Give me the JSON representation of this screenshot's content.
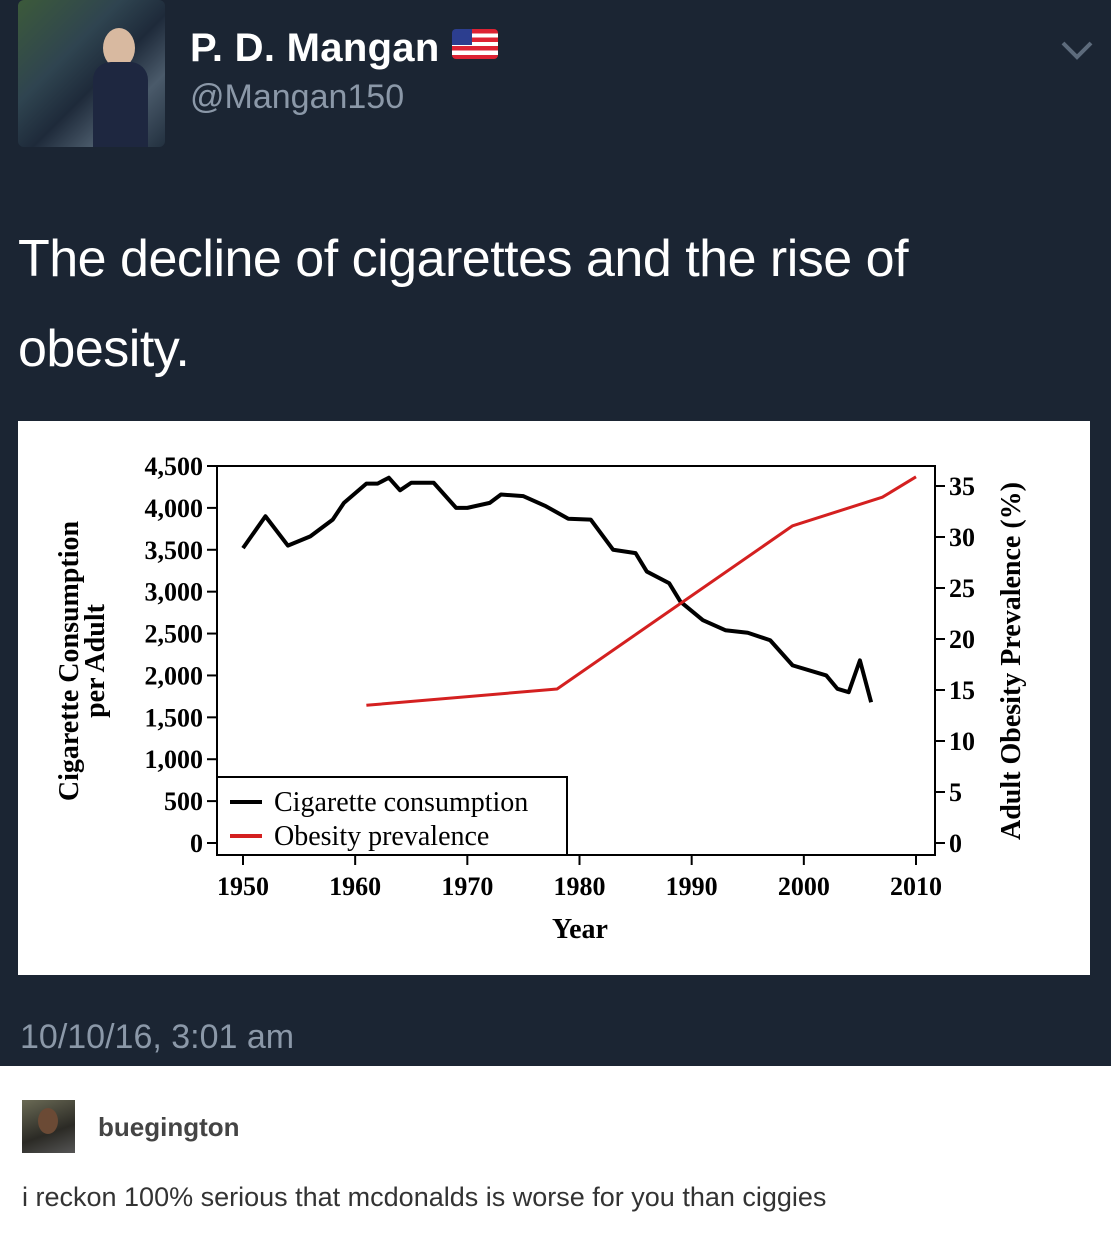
{
  "tweet": {
    "display_name": "P. D. Mangan",
    "flag_icon": "us-flag-icon",
    "handle": "@Mangan150",
    "text": "The decline of cigarettes and the rise of obesity.",
    "timestamp": "10/10/16, 3:01 am",
    "background_color": "#1b2533"
  },
  "reblog": {
    "username": "buegington",
    "comment": "i reckon 100% serious that mcdonalds is worse for you than ciggies"
  },
  "chart_data": {
    "type": "line",
    "xlabel": "Year",
    "ylabel": "Cigarette Consumption per Adult",
    "ylabel_right": "Adult Obesity Prevalence (%)",
    "xlim": [
      1950,
      2010
    ],
    "ylim": [
      0,
      4500
    ],
    "ylim_right": [
      0,
      35
    ],
    "x_ticks": [
      "1950",
      "1960",
      "1970",
      "1980",
      "1990",
      "2000",
      "2010"
    ],
    "y_ticks": [
      "0",
      "500",
      "1,000",
      "1,500",
      "2,000",
      "2,500",
      "3,000",
      "3,500",
      "4,000",
      "4,500"
    ],
    "y_ticks_right": [
      "0",
      "5",
      "10",
      "15",
      "20",
      "25",
      "30",
      "35"
    ],
    "legend_position": "bottom-left",
    "grid": false,
    "series": [
      {
        "name": "Cigarette consumption",
        "color": "#000000",
        "axis": "left",
        "x": [
          1950,
          1952,
          1954,
          1956,
          1958,
          1959,
          1961,
          1962,
          1963,
          1964,
          1965,
          1967,
          1969,
          1970,
          1972,
          1973,
          1975,
          1977,
          1979,
          1981,
          1983,
          1985,
          1986,
          1988,
          1989,
          1991,
          1993,
          1995,
          1997,
          1999,
          2002,
          2003,
          2004,
          2005,
          2006
        ],
        "y": [
          3520,
          3900,
          3550,
          3660,
          3860,
          4060,
          4290,
          4290,
          4360,
          4210,
          4300,
          4300,
          4000,
          4000,
          4060,
          4160,
          4140,
          4020,
          3870,
          3860,
          3500,
          3460,
          3240,
          3100,
          2880,
          2660,
          2540,
          2510,
          2420,
          2120,
          2000,
          1840,
          1800,
          2180,
          1680
        ]
      },
      {
        "name": "Obesity prevalence",
        "color": "#d42020",
        "axis": "right",
        "x": [
          1961,
          1978,
          1999,
          2007,
          2010
        ],
        "y": [
          13.5,
          15.1,
          31.1,
          33.9,
          35.9
        ]
      }
    ]
  }
}
